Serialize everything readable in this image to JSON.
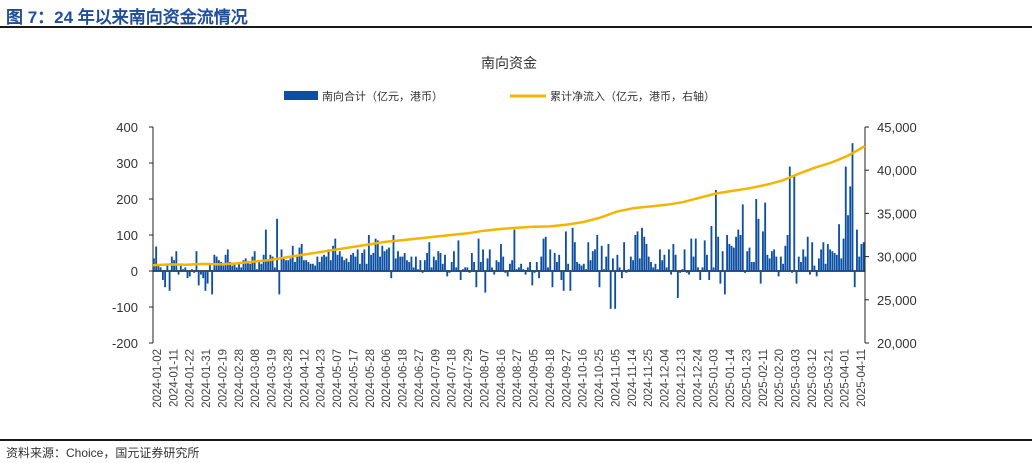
{
  "figure": {
    "title": "图 7：24 年以来南向资金流情况",
    "source": "资料来源：Choice，国元证券研究所"
  },
  "chart_data": {
    "type": "bar+line",
    "title": "南向资金",
    "legend_position": "top",
    "colors": {
      "bar": "#0d4fa3",
      "line": "#f5b400"
    },
    "grid": false,
    "y_left": {
      "range": [
        -200,
        400
      ],
      "ticks": [
        "400",
        "300",
        "200",
        "100",
        "0",
        "-100",
        "-200"
      ]
    },
    "y_right": {
      "range": [
        20000,
        45000
      ],
      "ticks": [
        "45,000",
        "40,000",
        "35,000",
        "30,000",
        "25,000",
        "20,000"
      ]
    },
    "x_tick_labels": [
      "2024-01-02",
      "2024-01-11",
      "2024-01-22",
      "2024-01-31",
      "2024-02-19",
      "2024-02-28",
      "2024-03-08",
      "2024-03-19",
      "2024-03-28",
      "2024-04-12",
      "2024-04-23",
      "2024-05-07",
      "2024-05-17",
      "2024-05-28",
      "2024-06-06",
      "2024-06-18",
      "2024-06-27",
      "2024-07-09",
      "2024-07-18",
      "2024-07-29",
      "2024-08-07",
      "2024-08-16",
      "2024-08-27",
      "2024-09-05",
      "2024-09-18",
      "2024-09-27",
      "2024-10-16",
      "2024-10-25",
      "2024-11-05",
      "2024-11-14",
      "2024-11-25",
      "2024-12-04",
      "2024-12-13",
      "2024-12-24",
      "2025-01-03",
      "2025-01-14",
      "2025-01-23",
      "2025-02-11",
      "2025-02-20",
      "2025-03-03",
      "2025-03-12",
      "2025-03-21",
      "2025-04-01",
      "2025-04-11"
    ],
    "series": [
      {
        "name": "南向合计（亿元，港币）",
        "type": "bar",
        "axis": "left",
        "values": [
          35,
          68,
          15,
          10,
          -25,
          -45,
          15,
          -55,
          40,
          30,
          55,
          -10,
          15,
          5,
          10,
          -20,
          -15,
          5,
          -5,
          55,
          -40,
          -10,
          -20,
          -55,
          -35,
          20,
          -65,
          45,
          40,
          30,
          25,
          15,
          45,
          60,
          25,
          15,
          20,
          10,
          25,
          10,
          30,
          35,
          25,
          20,
          40,
          55,
          5,
          25,
          20,
          45,
          115,
          30,
          45,
          40,
          10,
          145,
          -65,
          60,
          35,
          30,
          30,
          35,
          70,
          25,
          40,
          65,
          75,
          30,
          30,
          25,
          20,
          20,
          15,
          40,
          25,
          40,
          45,
          40,
          60,
          30,
          70,
          90,
          45,
          55,
          40,
          30,
          35,
          25,
          45,
          50,
          40,
          60,
          20,
          50,
          60,
          20,
          100,
          45,
          50,
          90,
          85,
          40,
          70,
          55,
          60,
          65,
          -20,
          100,
          35,
          55,
          40,
          40,
          50,
          30,
          25,
          40,
          10,
          40,
          5,
          30,
          -5,
          30,
          50,
          80,
          10,
          40,
          30,
          55,
          50,
          20,
          45,
          -15,
          -5,
          25,
          55,
          10,
          85,
          -25,
          5,
          10,
          10,
          -5,
          50,
          25,
          -45,
          90,
          25,
          60,
          -60,
          35,
          60,
          10,
          -10,
          30,
          25,
          75,
          40,
          -5,
          -15,
          20,
          30,
          115,
          5,
          10,
          20,
          5,
          -10,
          10,
          25,
          -40,
          -5,
          25,
          -20,
          40,
          90,
          95,
          10,
          60,
          -45,
          50,
          25,
          45,
          -25,
          -55,
          110,
          20,
          -55,
          120,
          80,
          25,
          20,
          15,
          20,
          5,
          80,
          30,
          55,
          60,
          100,
          -45,
          70,
          5,
          40,
          75,
          -105,
          35,
          -105,
          45,
          10,
          -20,
          80,
          -5,
          5,
          40,
          30,
          100,
          110,
          35,
          120,
          95,
          75,
          40,
          25,
          10,
          20,
          5,
          60,
          30,
          45,
          10,
          60,
          -10,
          75,
          45,
          -75,
          -5,
          5,
          60,
          -5,
          -10,
          90,
          40,
          90,
          10,
          -25,
          10,
          85,
          45,
          -25,
          125,
          10,
          225,
          95,
          -35,
          55,
          -65,
          100,
          75,
          70,
          65,
          95,
          115,
          100,
          185,
          -5,
          55,
          65,
          25,
          25,
          200,
          145,
          -35,
          110,
          190,
          45,
          35,
          55,
          60,
          40,
          -15,
          40,
          20,
          70,
          100,
          290,
          -5,
          265,
          -35,
          40,
          25,
          60,
          40,
          95,
          -10,
          80,
          15,
          -15,
          35,
          60,
          80,
          20,
          75,
          60,
          55,
          50,
          45,
          130,
          35,
          90,
          290,
          155,
          235,
          355,
          -45,
          115,
          40,
          75,
          80
        ]
      },
      {
        "name": "累计净流入（亿元，港币，右轴）",
        "type": "line",
        "axis": "right",
        "values": [
          29000,
          29100,
          29050,
          29150,
          29100,
          29200,
          29400,
          29600,
          29900,
          30200,
          30500,
          30800,
          31100,
          31400,
          31700,
          31900,
          32100,
          32300,
          32500,
          32700,
          33000,
          33200,
          33350,
          33450,
          33500,
          33700,
          34000,
          34500,
          35200,
          35600,
          35800,
          36000,
          36300,
          36800,
          37300,
          37600,
          37900,
          38300,
          38800,
          39600,
          40300,
          40900,
          41700,
          42800
        ]
      }
    ]
  }
}
